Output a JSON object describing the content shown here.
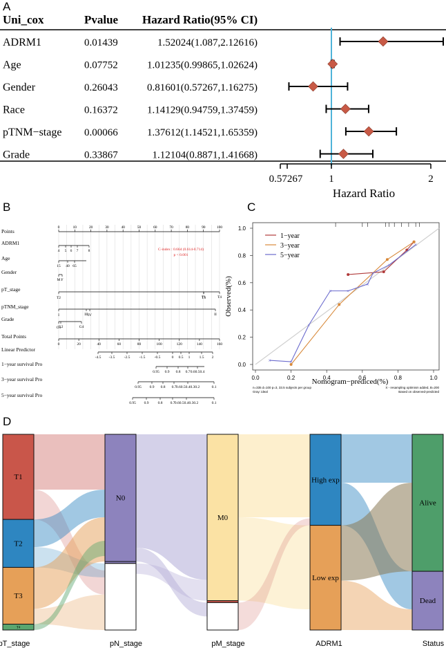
{
  "panels": {
    "a": "A",
    "b": "B",
    "c": "C",
    "d": "D"
  },
  "chart_data": [
    {
      "type": "forest",
      "header": {
        "name": "Uni_cox",
        "p": "Pvalue",
        "hr": "Hazard Ratio(95% CI)"
      },
      "rows": [
        {
          "name": "ADRM1",
          "p": "0.01439",
          "hr_text": "1.52024(1.087,2.12616)",
          "hr": 1.52024,
          "lo": 1.087,
          "hi": 2.12616
        },
        {
          "name": "Age",
          "p": "0.07752",
          "hr_text": "1.01235(0.99865,1.02624)",
          "hr": 1.01235,
          "lo": 0.99865,
          "hi": 1.02624
        },
        {
          "name": "Gender",
          "p": "0.26043",
          "hr_text": "0.81601(0.57267,1.16275)",
          "hr": 0.81601,
          "lo": 0.57267,
          "hi": 1.16275
        },
        {
          "name": "Race",
          "p": "0.16372",
          "hr_text": "1.14129(0.94759,1.37459)",
          "hr": 1.14129,
          "lo": 0.94759,
          "hi": 1.37459
        },
        {
          "name": "pTNM−stage",
          "p": "0.00066",
          "hr_text": "1.37612(1.14521,1.65359)",
          "hr": 1.37612,
          "lo": 1.14521,
          "hi": 1.65359
        },
        {
          "name": "Grade",
          "p": "0.33867",
          "hr_text": "1.12104(0.8871,1.41668)",
          "hr": 1.12104,
          "lo": 0.8871,
          "hi": 1.41668
        }
      ],
      "xlabel": "Hazard Ratio",
      "xticks": [
        "0.57267",
        "1",
        "2"
      ],
      "xrange": [
        0.5,
        2.1
      ],
      "reference_line": 1,
      "colors": {
        "point": "#c85a46",
        "refline": "#4fb3d9"
      }
    },
    {
      "type": "nomogram",
      "cindex": "C-index : 0.664 (0.614-0.714)",
      "pvalue": "p < 0.001",
      "scales": [
        {
          "label": "Points",
          "ticks": [
            "0",
            "10",
            "20",
            "30",
            "40",
            "50",
            "60",
            "70",
            "80",
            "90",
            "100"
          ]
        },
        {
          "label": "ADRM1",
          "ticks": [
            "4",
            "5",
            "6",
            "7",
            "8"
          ]
        },
        {
          "label": "Age",
          "ticks": [
            "15",
            "40",
            "65"
          ]
        },
        {
          "label": "Gender",
          "ticks": [
            "F",
            "M"
          ]
        },
        {
          "label": "pT_stage",
          "ticks": [
            "T1",
            "T4",
            "T2",
            "T3"
          ]
        },
        {
          "label": "pTNM_stage",
          "ticks": [
            "III",
            "II",
            "I",
            "IV"
          ]
        },
        {
          "label": "Grade",
          "ticks": [
            "G2",
            "G4",
            "G1"
          ]
        },
        {
          "label": "Total Points",
          "ticks": [
            "0",
            "20",
            "40",
            "60",
            "80",
            "100",
            "120",
            "140",
            "160"
          ]
        },
        {
          "label": "Linear Predictor",
          "ticks": [
            "-4.5",
            "-3.5",
            "-2.5",
            "-1.5",
            "-0.5",
            "0",
            "0.5",
            "1",
            "1.5",
            "2"
          ]
        },
        {
          "label": "1−year survival Pro",
          "ticks": [
            "0.95",
            "0.9",
            "0.8",
            "0.7",
            "0.60.50.4"
          ]
        },
        {
          "label": "3−year survival Pro",
          "ticks": [
            "0.95",
            "0.9",
            "0.8",
            "0.7",
            "0.60.50.40.30.2",
            "0.1"
          ]
        },
        {
          "label": "5−year survival Pro",
          "ticks": [
            "0.95",
            "0.9",
            "0.8",
            "0.7",
            "0.60.50.40.30.2",
            "0.1"
          ]
        }
      ]
    },
    {
      "type": "line",
      "xlabel": "Nomogram−prediced(%)",
      "ylabel": "Observed(%)",
      "xticks": [
        "0.0",
        "0.2",
        "0.4",
        "0.6",
        "0.8",
        "1.0"
      ],
      "yticks": [
        "0.0",
        "0.2",
        "0.4",
        "0.6",
        "0.8",
        "1.0"
      ],
      "xlim": [
        0,
        1
      ],
      "ylim": [
        0,
        1
      ],
      "series": [
        {
          "name": "1−year",
          "color": "#b03a3a",
          "x": [
            0.52,
            0.72,
            0.85,
            0.89
          ],
          "y": [
            0.66,
            0.68,
            0.84,
            0.9
          ]
        },
        {
          "name": "3−year",
          "color": "#d8893a",
          "x": [
            0.2,
            0.47,
            0.74,
            0.89
          ],
          "y": [
            0.0,
            0.44,
            0.77,
            0.9
          ]
        },
        {
          "name": "5−year",
          "color": "#6a6acd",
          "x": [
            0.08,
            0.2,
            0.3,
            0.42,
            0.52,
            0.63,
            0.66,
            0.75,
            0.9
          ],
          "y": [
            0.03,
            0.02,
            0.29,
            0.54,
            0.54,
            0.59,
            0.67,
            0.73,
            0.88
          ]
        }
      ],
      "footnote_left": [
        "n=335 d=100 p=3, 33.5 subjects per group",
        "Gray: ideal"
      ],
      "footnote_right": [
        "X - resampling optimism added, B=200",
        "Based on observed-predicted"
      ]
    },
    {
      "type": "sankey",
      "axes": [
        {
          "label": "pT_stage",
          "nodes": [
            {
              "name": "T1",
              "value": 0.435,
              "color": "#c9564a"
            },
            {
              "name": "T2",
              "value": 0.245,
              "color": "#2e86c1"
            },
            {
              "name": "T3",
              "value": 0.29,
              "color": "#e6a058"
            },
            {
              "name": "T4",
              "value": 0.03,
              "color": "#5aa66f"
            }
          ]
        },
        {
          "label": "pN_stage",
          "nodes": [
            {
              "name": "N0",
              "value": 0.65,
              "color": "#8d83bd"
            },
            {
              "name": "",
              "value": 0.01,
              "color": "#8d83bd"
            },
            {
              "name": "",
              "value": 0.34,
              "color": "#ffffff"
            }
          ]
        },
        {
          "label": "pM_stage",
          "nodes": [
            {
              "name": "M0",
              "value": 0.85,
              "color": "#fbe2a4"
            },
            {
              "name": "",
              "value": 0.01,
              "color": "#c9564a"
            },
            {
              "name": "",
              "value": 0.14,
              "color": "#ffffff"
            }
          ]
        },
        {
          "label": "ADRM1",
          "nodes": [
            {
              "name": "High exp",
              "value": 0.465,
              "color": "#2e86c1"
            },
            {
              "name": "Low exp",
              "value": 0.535,
              "color": "#e6a058"
            }
          ]
        },
        {
          "label": "Status",
          "nodes": [
            {
              "name": "Alive",
              "value": 0.7,
              "color": "#4e9e6a"
            },
            {
              "name": "Dead",
              "value": 0.3,
              "color": "#8d83bd"
            }
          ]
        }
      ]
    }
  ]
}
